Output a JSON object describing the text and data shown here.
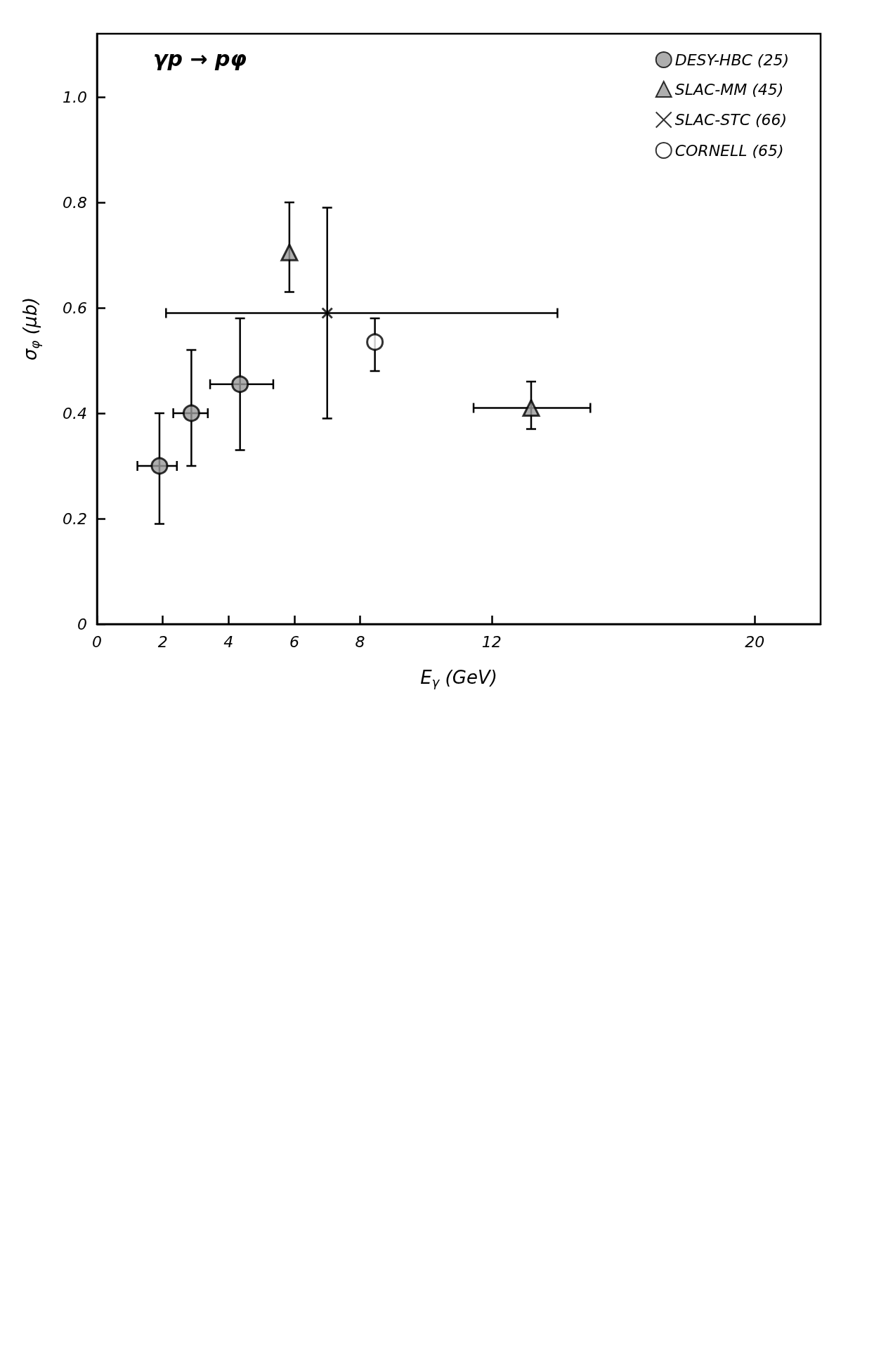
{
  "chart_data": {
    "type": "scatter",
    "xlabel": "E$_{γ}$ (GeV)",
    "ylabel": "σ$_{φ}$ (μb)",
    "annotations": [
      "γp → pφ"
    ],
    "xlim": [
      0,
      22
    ],
    "xticks": [
      0,
      2,
      4,
      6,
      8,
      12,
      20
    ],
    "ylim": [
      0,
      1.12
    ],
    "yticks": [
      0,
      0.2,
      0.4,
      0.6,
      0.8,
      {
        "value": 1.0,
        "label": "1.0"
      }
    ],
    "grid": false,
    "legend": "top right",
    "series": [
      {
        "name": "DESY-HBC (25)",
        "color": "#9a9a9a",
        "marker": "circle",
        "x": [
          1.9,
          2.87,
          4.35
        ],
        "values": [
          0.3,
          0.4,
          0.455
        ],
        "errors": [
          [
            0.19,
            0.4
          ],
          [
            0.3,
            0.52
          ],
          [
            0.33,
            0.58
          ]
        ],
        "xerrors": [
          [
            1.23,
            2.43
          ],
          [
            2.32,
            3.37
          ],
          [
            3.44,
            5.36
          ]
        ]
      },
      {
        "name": "SLAC-MM (45)",
        "color": "#9a9a9a",
        "marker": "triangle",
        "x": [
          5.85,
          13.2
        ],
        "values": [
          0.705,
          0.41
        ],
        "errors": [
          [
            0.63,
            0.8
          ],
          [
            0.37,
            0.46
          ]
        ],
        "xerrors": [
          null,
          [
            11.45,
            15.0
          ]
        ]
      },
      {
        "name": "SLAC-STC (66)",
        "color": "#000000",
        "marker": "cross",
        "x": [
          7.0
        ],
        "values": [
          0.59
        ],
        "errors": [
          [
            0.39,
            0.79
          ]
        ],
        "xerrors": [
          [
            2.1,
            14.0
          ]
        ]
      },
      {
        "name": "CORNELL (65)",
        "color": "#ffffff",
        "marker": "circle",
        "x": [
          8.45
        ],
        "values": [
          0.535
        ],
        "errors": [
          [
            0.48,
            0.58
          ]
        ],
        "xerrors": [
          null
        ]
      }
    ]
  }
}
